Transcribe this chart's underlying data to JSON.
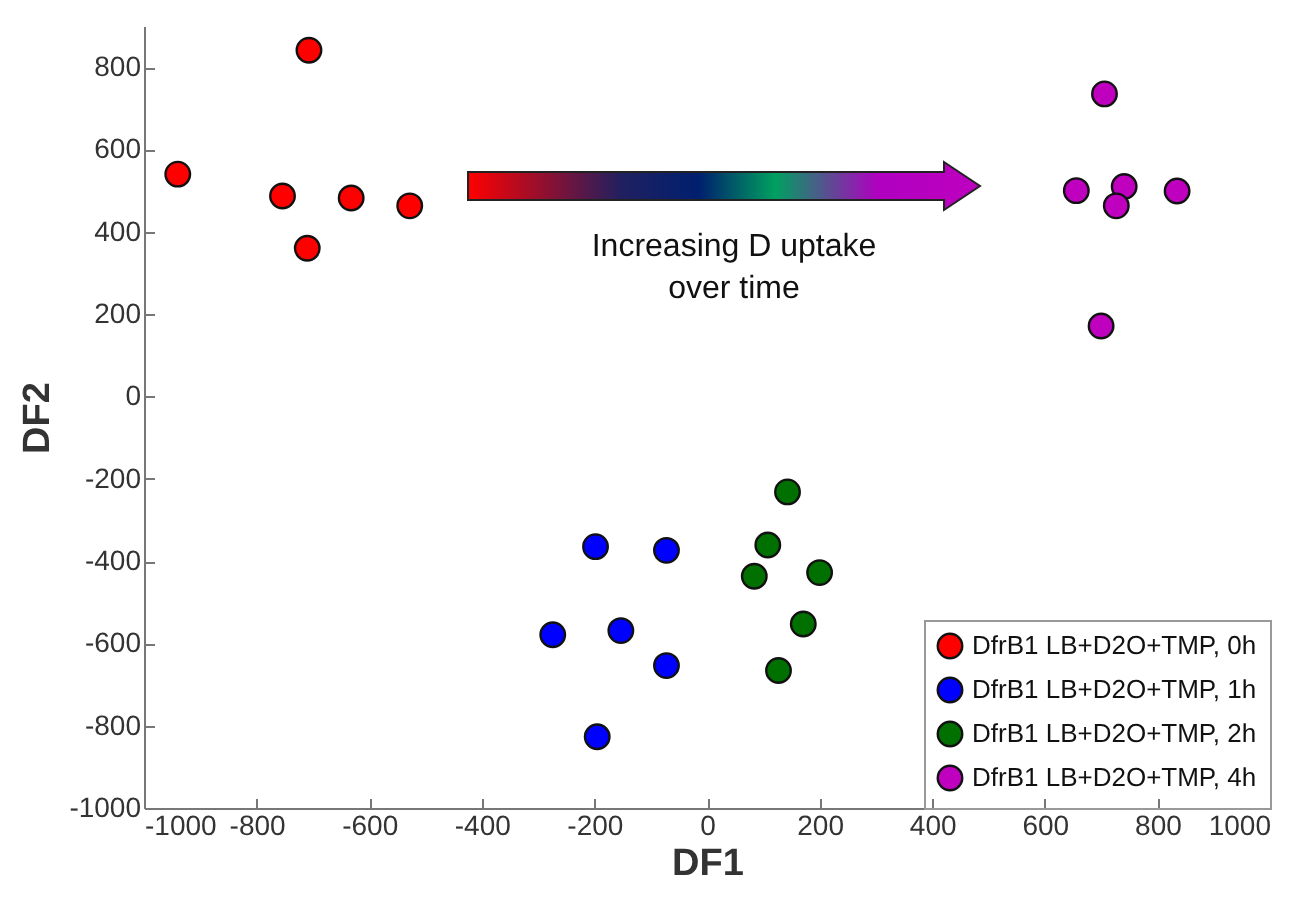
{
  "chart_data": {
    "type": "scatter",
    "xlabel": "DF1",
    "ylabel": "DF2",
    "xlim": [
      -1000,
      1000
    ],
    "xticks": [
      -1000,
      -800,
      -600,
      -400,
      -200,
      0,
      200,
      400,
      600,
      800,
      1000
    ],
    "ylim": [
      -1000,
      900
    ],
    "yticks": [
      -1000,
      -800,
      -600,
      -400,
      -200,
      0,
      200,
      400,
      600,
      800
    ],
    "grid": false,
    "legend": "bottom right",
    "marker": "circle",
    "annotations": [
      "Increasing D uptake over time"
    ],
    "series": [
      {
        "name": "DfrB1 LB+D2O+TMP, 0h",
        "color": "#ff0000",
        "x": [
          -940,
          -707,
          -754,
          -632,
          -528,
          -710
        ],
        "values": [
          540,
          841,
          487,
          482,
          463,
          360
        ]
      },
      {
        "name": "DfrB1 LB+D2O+TMP, 1h",
        "color": "#0000ff",
        "x": [
          -198,
          -72,
          -274,
          -153,
          -72,
          -195
        ],
        "values": [
          -365,
          -374,
          -579,
          -569,
          -654,
          -827
        ]
      },
      {
        "name": "DfrB1 LB+D2O+TMP, 2h",
        "color": "#007000",
        "x": [
          143,
          108,
          84,
          200,
          171,
          127
        ],
        "values": [
          -232,
          -361,
          -437,
          -428,
          -553,
          -666
        ]
      },
      {
        "name": "DfrB1 LB+D2O+TMP, 4h",
        "color": "#bf00bf",
        "x": [
          706,
          656,
          741,
          727,
          835,
          700
        ],
        "values": [
          735,
          500,
          510,
          463,
          499,
          171
        ]
      }
    ]
  }
}
